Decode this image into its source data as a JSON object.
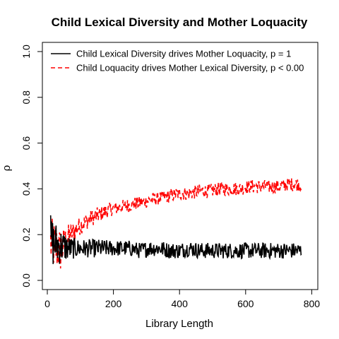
{
  "chart_data": {
    "type": "line",
    "title": "Child Lexical Diversity and Mother Loquacity",
    "xlabel": "Library Length",
    "ylabel": "ρ",
    "xlim": [
      0,
      800
    ],
    "ylim": [
      0.0,
      1.0
    ],
    "x_ticks": [
      0,
      200,
      400,
      600,
      800
    ],
    "x_tick_labels": [
      "0",
      "200",
      "400",
      "600",
      "800"
    ],
    "y_ticks": [
      0.0,
      0.2,
      0.4,
      0.6,
      0.8,
      1.0
    ],
    "y_tick_labels": [
      "0.0",
      "0.2",
      "0.4",
      "0.6",
      "0.8",
      "1.0"
    ],
    "grid": false,
    "legend": {
      "placement": "top-left",
      "entries": [
        {
          "label": "Child Lexical Diversity drives Mother Loquacity, p = 1",
          "color": "#000000",
          "style": "solid"
        },
        {
          "label": "Child Loquacity drives Mother Lexical Diversity, p < 0.00",
          "color": "#ff0000",
          "style": "dashed"
        }
      ]
    },
    "series": [
      {
        "color": "#000000",
        "style": "solid",
        "x": [
          10,
          40,
          70,
          100,
          130,
          160,
          190,
          220,
          250,
          280,
          310,
          340,
          370,
          400,
          430,
          460,
          490,
          520,
          550,
          580,
          610,
          640,
          670,
          700,
          730,
          770
        ],
        "y": [
          0.17,
          0.15,
          0.14,
          0.14,
          0.14,
          0.14,
          0.14,
          0.14,
          0.14,
          0.13,
          0.14,
          0.14,
          0.13,
          0.13,
          0.14,
          0.13,
          0.13,
          0.13,
          0.13,
          0.13,
          0.13,
          0.13,
          0.13,
          0.13,
          0.13,
          0.13
        ],
        "noise": [
          0.12,
          0.08,
          0.05,
          0.04,
          0.04,
          0.04,
          0.035,
          0.035,
          0.035,
          0.035,
          0.035,
          0.035,
          0.035,
          0.035,
          0.035,
          0.035,
          0.035,
          0.035,
          0.035,
          0.035,
          0.035,
          0.035,
          0.035,
          0.035,
          0.035,
          0.035
        ]
      },
      {
        "color": "#ff0000",
        "style": "dashed",
        "x": [
          10,
          40,
          70,
          100,
          130,
          160,
          190,
          220,
          250,
          280,
          310,
          340,
          370,
          400,
          430,
          460,
          490,
          520,
          550,
          580,
          610,
          640,
          670,
          700,
          730,
          770
        ],
        "y": [
          0.16,
          0.13,
          0.2,
          0.24,
          0.27,
          0.29,
          0.31,
          0.32,
          0.33,
          0.34,
          0.35,
          0.36,
          0.37,
          0.38,
          0.38,
          0.39,
          0.39,
          0.4,
          0.4,
          0.4,
          0.41,
          0.41,
          0.41,
          0.41,
          0.42,
          0.42
        ],
        "noise": [
          0.12,
          0.1,
          0.05,
          0.04,
          0.035,
          0.035,
          0.03,
          0.03,
          0.03,
          0.03,
          0.03,
          0.03,
          0.03,
          0.03,
          0.03,
          0.03,
          0.03,
          0.03,
          0.03,
          0.03,
          0.03,
          0.03,
          0.03,
          0.03,
          0.03,
          0.03
        ]
      }
    ]
  }
}
